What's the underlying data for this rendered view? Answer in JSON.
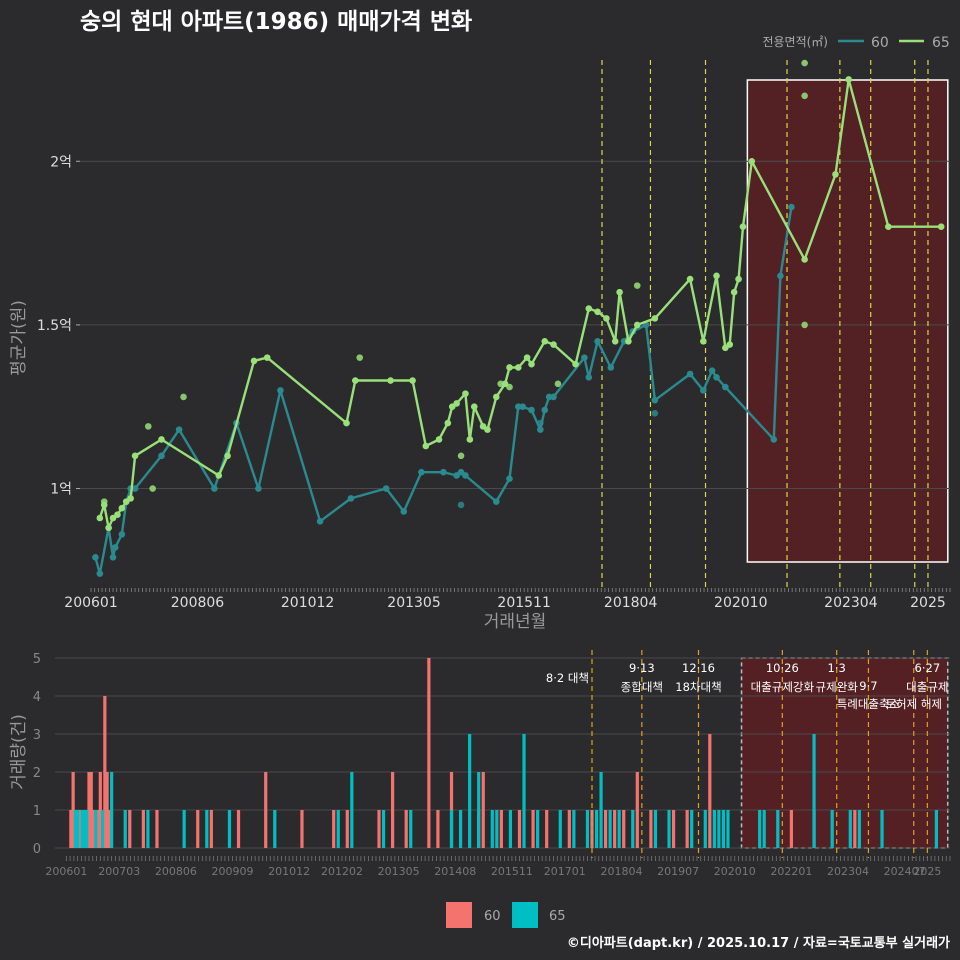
{
  "chart_data": [
    {
      "type": "line",
      "title": "숭의 현대 아파트(1986) 매매가격 변화",
      "xlabel": "거래년월",
      "ylabel": "평균가(원)",
      "x_tick_labels": [
        "200601",
        "200806",
        "201012",
        "201305",
        "201511",
        "201804",
        "202010",
        "202304",
        "2025"
      ],
      "x_tick_values": [
        2006.0,
        2008.417,
        2010.917,
        2013.333,
        2015.833,
        2018.25,
        2020.75,
        2023.25,
        2025.0
      ],
      "xlim": [
        2005.75,
        2025.5
      ],
      "y_tick_labels": [
        "1억",
        "1.5억",
        "2억"
      ],
      "y_tick_values": [
        1.0,
        1.5,
        2.0
      ],
      "ylim": [
        0.69,
        2.34
      ],
      "y_unit": "억",
      "legend": {
        "title": "전용면적(㎡)",
        "position": "top-right"
      },
      "highlight_range": [
        2020.9,
        2025.45
      ],
      "policy_dates": [
        2017.6,
        2018.7,
        2019.95,
        2021.8,
        2023.0,
        2023.7,
        2024.7,
        2025.0
      ],
      "series": [
        {
          "name": "60",
          "color": "#2a8a8f",
          "x": [
            2006.1,
            2006.2,
            2006.4,
            2006.5,
            2006.55,
            2006.7,
            2006.8,
            2006.9,
            2007.0,
            2007.6,
            2008.0,
            2008.8,
            2009.3,
            2009.8,
            2010.3,
            2011.2,
            2011.9,
            2012.7,
            2013.1,
            2013.5,
            2014.0,
            2014.3,
            2014.4,
            2014.5,
            2015.2,
            2015.5,
            2015.7,
            2015.8,
            2016.0,
            2016.2,
            2016.3,
            2016.4,
            2016.5,
            2017.2,
            2017.3,
            2017.5,
            2017.8,
            2018.1,
            2018.3,
            2018.6,
            2018.8,
            2019.6,
            2019.9,
            2020.1,
            2020.2,
            2020.4,
            2021.5,
            2021.65,
            2021.9
          ],
          "y": [
            0.79,
            0.74,
            0.88,
            0.79,
            0.82,
            0.86,
            0.96,
            1.0,
            1.0,
            1.1,
            1.18,
            1.0,
            1.2,
            1.0,
            1.3,
            0.9,
            0.97,
            1.0,
            0.93,
            1.05,
            1.05,
            1.04,
            1.05,
            1.04,
            0.96,
            1.03,
            1.25,
            1.25,
            1.24,
            1.18,
            1.24,
            1.28,
            1.28,
            1.4,
            1.34,
            1.45,
            1.37,
            1.45,
            1.48,
            1.5,
            1.27,
            1.35,
            1.3,
            1.36,
            1.34,
            1.31,
            1.15,
            1.65,
            1.86
          ],
          "extra_points": [
            [
              2014.4,
              0.95
            ],
            [
              2018.8,
              1.23
            ],
            [
              2016.2,
              1.2
            ]
          ]
        },
        {
          "name": "65",
          "color": "#9ae07a",
          "x": [
            2006.2,
            2006.3,
            2006.4,
            2006.5,
            2006.6,
            2006.7,
            2006.8,
            2006.9,
            2007.0,
            2007.6,
            2008.9,
            2009.1,
            2009.7,
            2010.0,
            2011.8,
            2012.0,
            2012.8,
            2013.3,
            2013.6,
            2013.9,
            2014.1,
            2014.2,
            2014.3,
            2014.5,
            2014.6,
            2014.7,
            2014.9,
            2015.0,
            2015.2,
            2015.4,
            2015.5,
            2015.7,
            2015.9,
            2016.0,
            2016.3,
            2016.5,
            2017.0,
            2017.3,
            2017.5,
            2017.7,
            2017.9,
            2018.0,
            2018.2,
            2018.4,
            2018.8,
            2019.6,
            2019.9,
            2020.2,
            2020.4,
            2020.5,
            2020.6,
            2020.7,
            2020.8,
            2021.0,
            2022.2,
            2022.9,
            2023.2,
            2024.1,
            2025.3
          ],
          "y": [
            0.91,
            0.95,
            0.88,
            0.91,
            0.92,
            0.94,
            0.96,
            0.97,
            1.1,
            1.15,
            1.04,
            1.1,
            1.39,
            1.4,
            1.2,
            1.33,
            1.33,
            1.33,
            1.13,
            1.15,
            1.2,
            1.25,
            1.26,
            1.29,
            1.15,
            1.25,
            1.19,
            1.18,
            1.28,
            1.32,
            1.37,
            1.37,
            1.4,
            1.38,
            1.45,
            1.44,
            1.38,
            1.55,
            1.54,
            1.52,
            1.45,
            1.6,
            1.45,
            1.5,
            1.52,
            1.64,
            1.45,
            1.65,
            1.43,
            1.44,
            1.6,
            1.64,
            1.8,
            2.0,
            1.7,
            1.96,
            2.25,
            1.8,
            1.8
          ],
          "extra_points": [
            [
              2006.3,
              0.96
            ],
            [
              2007.3,
              1.19
            ],
            [
              2007.4,
              1.0
            ],
            [
              2008.1,
              1.28
            ],
            [
              2012.1,
              1.4
            ],
            [
              2014.4,
              1.1
            ],
            [
              2015.3,
              1.32
            ],
            [
              2015.5,
              1.31
            ],
            [
              2016.6,
              1.32
            ],
            [
              2018.4,
              1.62
            ],
            [
              2022.2,
              1.5
            ],
            [
              2022.2,
              2.2
            ],
            [
              2022.2,
              2.3
            ]
          ]
        }
      ]
    },
    {
      "type": "bar",
      "ylabel": "거래량(건)",
      "x_tick_labels": [
        "200601",
        "200703",
        "200806",
        "200909",
        "201012",
        "201202",
        "201305",
        "201408",
        "201511",
        "201701",
        "201804",
        "201907",
        "202010",
        "202201",
        "202304",
        "202407",
        "2025"
      ],
      "x_tick_values": [
        2006.0,
        2007.167,
        2008.417,
        2009.667,
        2010.917,
        2012.083,
        2013.333,
        2014.583,
        2015.833,
        2017.0,
        2018.25,
        2019.5,
        2020.75,
        2022.0,
        2023.25,
        2024.5,
        2025.0
      ],
      "xlim": [
        2005.75,
        2025.5
      ],
      "ylim": [
        0,
        5
      ],
      "y_tick_labels": [
        "0",
        "1",
        "2",
        "3",
        "4",
        "5"
      ],
      "legend_position": "bottom",
      "highlight_range": [
        2020.9,
        2025.45
      ],
      "policy_events": [
        {
          "x": 2017.6,
          "label": "8·2 대책",
          "label2": "",
          "row": 2
        },
        {
          "x": 2018.7,
          "label": "9·13",
          "label2": "종합대책",
          "row": 1
        },
        {
          "x": 2019.95,
          "label": "12·16",
          "label2": "18차대책",
          "row": 1
        },
        {
          "x": 2021.8,
          "label": "10·26",
          "label2": "대출규제강화",
          "row": 1
        },
        {
          "x": 2023.0,
          "label": "1·3",
          "label2": "규제완화",
          "row": 1
        },
        {
          "x": 2023.7,
          "label": "9·7",
          "label2": "특례대출축소",
          "row": 2
        },
        {
          "x": 2024.7,
          "label": "",
          "label2": "토허제 해제",
          "row": 3
        },
        {
          "x": 2025.0,
          "label": "6·27",
          "label2": "대출규제",
          "row": 1
        }
      ],
      "series": [
        {
          "name": "60",
          "color": "#f4736e",
          "x": [
            2006.1,
            2006.15,
            2006.3,
            2006.5,
            2006.55,
            2006.6,
            2006.7,
            2006.75,
            2006.8,
            2006.85,
            2006.9,
            2006.95,
            2007.4,
            2007.7,
            2008.0,
            2008.9,
            2009.2,
            2009.8,
            2010.4,
            2011.2,
            2011.9,
            2012.2,
            2012.9,
            2013.2,
            2013.5,
            2014.0,
            2014.2,
            2014.5,
            2015.1,
            2015.2,
            2015.6,
            2016.0,
            2016.3,
            2016.6,
            2017.1,
            2017.6,
            2017.9,
            2018.1,
            2018.3,
            2018.6,
            2018.9,
            2019.4,
            2019.7,
            2020.2,
            2022.0,
            2022.5,
            2023.4
          ],
          "y": [
            1,
            2,
            1,
            2,
            2,
            1,
            1,
            2,
            1,
            4,
            2,
            1,
            1,
            1,
            1,
            1,
            1,
            1,
            2,
            1,
            1,
            1,
            1,
            2,
            1,
            5,
            1,
            2,
            1,
            2,
            1,
            1,
            1,
            1,
            1,
            1,
            1,
            1,
            1,
            2,
            1,
            1,
            1,
            3,
            1,
            1,
            1
          ]
        },
        {
          "name": "65",
          "color": "#00bfc4",
          "x": [
            2006.2,
            2006.25,
            2006.35,
            2006.4,
            2006.45,
            2006.65,
            2006.8,
            2007.0,
            2007.3,
            2007.8,
            2008.6,
            2009.1,
            2009.6,
            2010.6,
            2012.0,
            2012.3,
            2013.0,
            2013.6,
            2014.5,
            2014.7,
            2014.9,
            2015.1,
            2015.4,
            2015.5,
            2015.8,
            2016.1,
            2016.4,
            2016.9,
            2017.2,
            2017.5,
            2017.7,
            2017.8,
            2018.0,
            2018.2,
            2018.5,
            2019.0,
            2019.3,
            2019.8,
            2020.1,
            2020.3,
            2020.4,
            2020.5,
            2020.6,
            2021.3,
            2021.4,
            2021.7,
            2022.5,
            2022.9,
            2023.3,
            2023.5,
            2024.0,
            2025.2
          ],
          "y": [
            1,
            1,
            1,
            1,
            1,
            1,
            1,
            2,
            1,
            1,
            1,
            1,
            1,
            1,
            1,
            2,
            1,
            1,
            1,
            1,
            3,
            2,
            1,
            1,
            1,
            3,
            1,
            1,
            1,
            1,
            1,
            2,
            1,
            1,
            1,
            1,
            1,
            1,
            1,
            1,
            1,
            1,
            1,
            1,
            1,
            1,
            3,
            1,
            1,
            1,
            1,
            1
          ]
        }
      ]
    }
  ],
  "footer": {
    "credit": "©디아파트(dapt.kr) / 2025.10.17 / 자료=국토교통부 실거래가"
  },
  "colors": {
    "background": "#2b2b2d",
    "grid": "#4a4a4d",
    "highlight_fill": "#5a1f22",
    "policy_line_top": "#d9d94a",
    "policy_line_bottom": "#e0a020"
  }
}
